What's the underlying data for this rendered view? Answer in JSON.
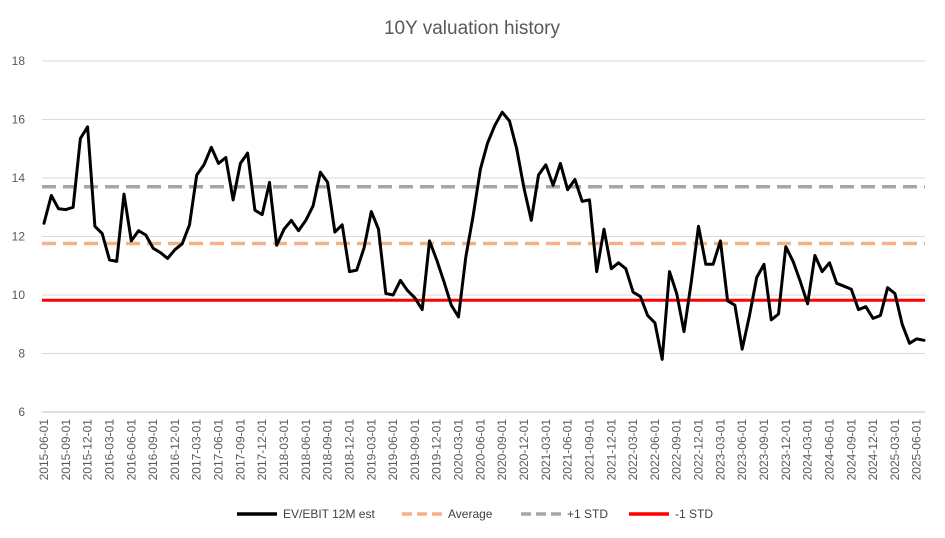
{
  "chart_data": {
    "type": "line",
    "title": "10Y valuation history",
    "xlabel": "",
    "ylabel": "",
    "ylim": [
      6,
      18
    ],
    "yticks": [
      6,
      8,
      10,
      12,
      14,
      16,
      18
    ],
    "grid": true,
    "legend_position": "bottom",
    "x_tick_labels": [
      "2015-06-01",
      "2015-09-01",
      "2015-12-01",
      "2016-03-01",
      "2016-06-01",
      "2016-09-01",
      "2016-12-01",
      "2017-03-01",
      "2017-06-01",
      "2017-09-01",
      "2017-12-01",
      "2018-03-01",
      "2018-06-01",
      "2018-09-01",
      "2018-12-01",
      "2019-03-01",
      "2019-06-01",
      "2019-09-01",
      "2019-12-01",
      "2020-03-01",
      "2020-06-01",
      "2020-09-01",
      "2020-12-01",
      "2021-03-01",
      "2021-06-01",
      "2021-09-01",
      "2021-12-01",
      "2022-03-01",
      "2022-06-01",
      "2022-09-01",
      "2022-12-01",
      "2023-03-01",
      "2023-06-01",
      "2023-09-01",
      "2023-12-01",
      "2024-03-01",
      "2024-06-01",
      "2024-09-01",
      "2024-12-01",
      "2025-03-01",
      "2025-06-01"
    ],
    "series": [
      {
        "name": "EV/EBIT 12M est",
        "color": "#000000",
        "style": "solid",
        "values": [
          12.45,
          13.4,
          12.95,
          12.92,
          13.0,
          15.35,
          15.75,
          12.35,
          12.1,
          11.2,
          11.15,
          13.45,
          11.85,
          12.2,
          12.05,
          11.6,
          11.45,
          11.25,
          11.55,
          11.75,
          12.4,
          14.1,
          14.45,
          15.05,
          14.5,
          14.7,
          13.25,
          14.5,
          14.85,
          12.9,
          12.75,
          13.85,
          11.7,
          12.25,
          12.55,
          12.2,
          12.55,
          13.05,
          14.2,
          13.85,
          12.15,
          12.4,
          10.8,
          10.85,
          11.6,
          12.85,
          12.25,
          10.05,
          10.0,
          10.5,
          10.15,
          9.9,
          9.5,
          11.85,
          11.2,
          10.45,
          9.65,
          9.25,
          11.3,
          12.7,
          14.3,
          15.2,
          15.8,
          16.25,
          15.95,
          15.0,
          13.65,
          12.55,
          14.1,
          14.45,
          13.75,
          14.5,
          13.6,
          13.95,
          13.2,
          13.25,
          10.8,
          12.25,
          10.9,
          11.1,
          10.9,
          10.1,
          9.95,
          9.3,
          9.05,
          7.8,
          10.8,
          10.05,
          8.75,
          10.45,
          12.35,
          11.05,
          11.05,
          11.85,
          9.8,
          9.65,
          8.15,
          9.3,
          10.6,
          11.05,
          9.15,
          9.35,
          11.65,
          11.15,
          10.45,
          9.7,
          11.35,
          10.8,
          11.1,
          10.4,
          10.3,
          10.2,
          9.5,
          9.6,
          9.2,
          9.3,
          10.25,
          10.05,
          9.0,
          8.35,
          8.5,
          8.45
        ]
      },
      {
        "name": "Average",
        "color": "#F4B183",
        "style": "dashed",
        "values": [
          11.76
        ]
      },
      {
        "name": "+1 STD",
        "color": "#A6A6A6",
        "style": "dashed",
        "values": [
          13.7
        ]
      },
      {
        "name": "-1 STD",
        "color": "#FF0000",
        "style": "solid",
        "values": [
          9.82
        ]
      }
    ]
  }
}
